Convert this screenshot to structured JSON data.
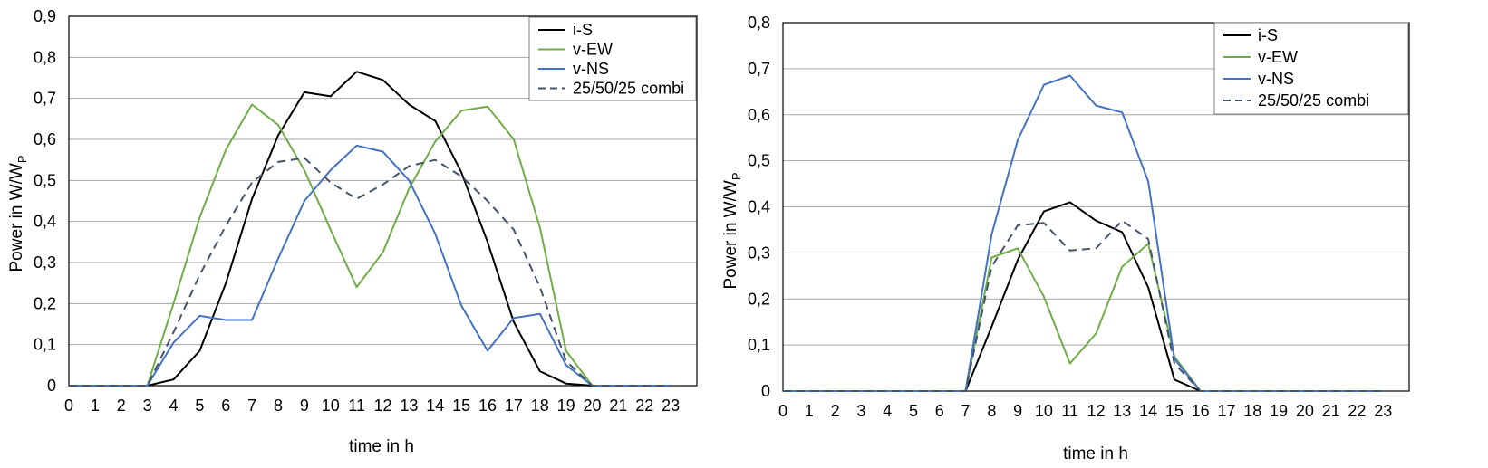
{
  "chart_data": [
    {
      "type": "line",
      "title": "",
      "xlabel": "time in h",
      "ylabel": "Power in W/W",
      "ylabel_sub": "P",
      "x": [
        0,
        1,
        2,
        3,
        4,
        5,
        6,
        7,
        8,
        9,
        10,
        11,
        12,
        13,
        14,
        15,
        16,
        17,
        18,
        19,
        20,
        21,
        22,
        23
      ],
      "ylim": [
        0,
        0.9
      ],
      "yticks": [
        "0",
        "0,1",
        "0,2",
        "0,3",
        "0,4",
        "0,5",
        "0,6",
        "0,7",
        "0,8",
        "0,9"
      ],
      "grid": true,
      "legend_position": "top-right",
      "series": [
        {
          "name": "i-S",
          "color": "#000000",
          "dash": false,
          "values": [
            0,
            0,
            0,
            0,
            0.015,
            0.085,
            0.25,
            0.455,
            0.61,
            0.715,
            0.705,
            0.765,
            0.745,
            0.685,
            0.645,
            0.52,
            0.35,
            0.155,
            0.035,
            0.005,
            0,
            0,
            0,
            0
          ]
        },
        {
          "name": "v-EW",
          "color": "#70ad47",
          "dash": false,
          "values": [
            0,
            0,
            0,
            0,
            0.2,
            0.41,
            0.575,
            0.685,
            0.635,
            0.525,
            0.38,
            0.24,
            0.325,
            0.48,
            0.595,
            0.67,
            0.68,
            0.6,
            0.385,
            0.085,
            0,
            0,
            0,
            0
          ]
        },
        {
          "name": "v-NS",
          "color": "#4472c4",
          "dash": false,
          "values": [
            0,
            0,
            0,
            0,
            0.105,
            0.17,
            0.16,
            0.16,
            0.31,
            0.45,
            0.525,
            0.585,
            0.57,
            0.5,
            0.37,
            0.195,
            0.085,
            0.165,
            0.175,
            0.05,
            0,
            0,
            0,
            0
          ]
        },
        {
          "name": "25/50/25 combi",
          "color": "#44546a",
          "dash": true,
          "values": [
            0,
            0,
            0,
            0,
            0.13,
            0.27,
            0.39,
            0.495,
            0.545,
            0.555,
            0.495,
            0.455,
            0.49,
            0.535,
            0.55,
            0.51,
            0.45,
            0.38,
            0.24,
            0.06,
            0,
            0,
            0,
            0
          ]
        }
      ]
    },
    {
      "type": "line",
      "title": "",
      "xlabel": "time in h",
      "ylabel": "Power in W/W",
      "ylabel_sub": "P",
      "x": [
        0,
        1,
        2,
        3,
        4,
        5,
        6,
        7,
        8,
        9,
        10,
        11,
        12,
        13,
        14,
        15,
        16,
        17,
        18,
        19,
        20,
        21,
        22,
        23
      ],
      "ylim": [
        0,
        0.8
      ],
      "yticks": [
        "0",
        "0,1",
        "0,2",
        "0,3",
        "0,4",
        "0,5",
        "0,6",
        "0,7",
        "0,8"
      ],
      "grid": true,
      "legend_position": "top-right",
      "series": [
        {
          "name": "i-S",
          "color": "#000000",
          "dash": false,
          "values": [
            0,
            0,
            0,
            0,
            0,
            0,
            0,
            0,
            0.14,
            0.285,
            0.39,
            0.41,
            0.37,
            0.345,
            0.225,
            0.025,
            0,
            0,
            0,
            0,
            0,
            0,
            0,
            0
          ]
        },
        {
          "name": "v-EW",
          "color": "#70ad47",
          "dash": false,
          "values": [
            0,
            0,
            0,
            0,
            0,
            0,
            0,
            0,
            0.29,
            0.31,
            0.205,
            0.06,
            0.125,
            0.27,
            0.32,
            0.075,
            0,
            0,
            0,
            0,
            0,
            0,
            0,
            0
          ]
        },
        {
          "name": "v-NS",
          "color": "#4472c4",
          "dash": false,
          "values": [
            0,
            0,
            0,
            0,
            0,
            0,
            0,
            0,
            0.34,
            0.545,
            0.665,
            0.685,
            0.62,
            0.605,
            0.455,
            0.07,
            0,
            0,
            0,
            0,
            0,
            0,
            0,
            0
          ]
        },
        {
          "name": "25/50/25 combi",
          "color": "#44546a",
          "dash": true,
          "values": [
            0,
            0,
            0,
            0,
            0,
            0,
            0,
            0,
            0.27,
            0.36,
            0.365,
            0.305,
            0.31,
            0.37,
            0.33,
            0.06,
            0,
            0,
            0,
            0,
            0,
            0,
            0,
            0
          ]
        }
      ]
    }
  ]
}
